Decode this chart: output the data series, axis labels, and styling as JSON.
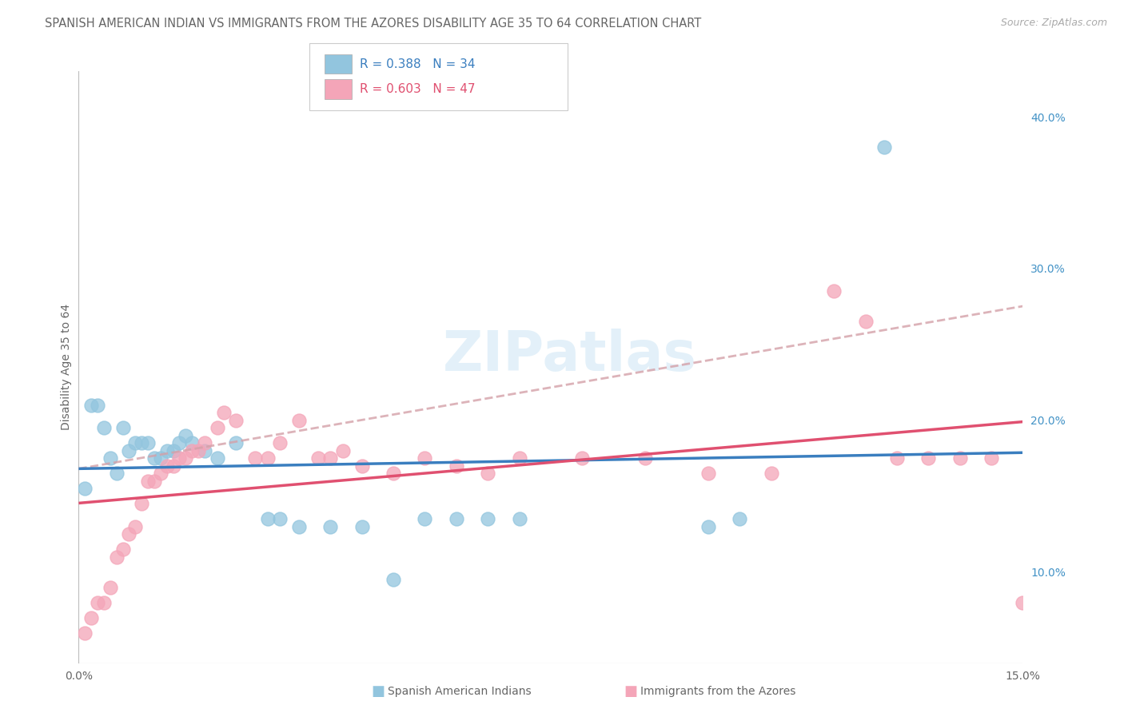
{
  "title": "SPANISH AMERICAN INDIAN VS IMMIGRANTS FROM THE AZORES DISABILITY AGE 35 TO 64 CORRELATION CHART",
  "source": "Source: ZipAtlas.com",
  "ylabel": "Disability Age 35 to 64",
  "ylabel_right_ticks": [
    "10.0%",
    "20.0%",
    "30.0%",
    "40.0%"
  ],
  "ylabel_right_vals": [
    0.1,
    0.2,
    0.3,
    0.4
  ],
  "legend1_label": "Spanish American Indians",
  "legend2_label": "Immigrants from the Azores",
  "R1": "0.388",
  "N1": "34",
  "R2": "0.603",
  "N2": "47",
  "color_blue": "#92c5de",
  "color_pink": "#f4a5b8",
  "color_blue_line": "#3a7ebf",
  "color_pink_line": "#e05070",
  "color_dashed": "#d4a0a8",
  "background": "#ffffff",
  "grid_color": "#d8d8d8",
  "xlim": [
    0.0,
    0.15
  ],
  "ylim": [
    0.04,
    0.43
  ],
  "blue_points_x": [
    0.001,
    0.002,
    0.003,
    0.004,
    0.005,
    0.006,
    0.007,
    0.008,
    0.009,
    0.01,
    0.011,
    0.012,
    0.013,
    0.014,
    0.015,
    0.016,
    0.017,
    0.018,
    0.02,
    0.022,
    0.025,
    0.03,
    0.032,
    0.035,
    0.04,
    0.045,
    0.05,
    0.055,
    0.06,
    0.065,
    0.07,
    0.1,
    0.105,
    0.128
  ],
  "blue_points_y": [
    0.155,
    0.21,
    0.21,
    0.195,
    0.175,
    0.165,
    0.195,
    0.18,
    0.185,
    0.185,
    0.185,
    0.175,
    0.175,
    0.18,
    0.18,
    0.185,
    0.19,
    0.185,
    0.18,
    0.175,
    0.185,
    0.135,
    0.135,
    0.13,
    0.13,
    0.13,
    0.095,
    0.135,
    0.135,
    0.135,
    0.135,
    0.13,
    0.135,
    0.38
  ],
  "pink_points_x": [
    0.001,
    0.002,
    0.003,
    0.004,
    0.005,
    0.006,
    0.007,
    0.008,
    0.009,
    0.01,
    0.011,
    0.012,
    0.013,
    0.014,
    0.015,
    0.016,
    0.017,
    0.018,
    0.019,
    0.02,
    0.022,
    0.023,
    0.025,
    0.028,
    0.03,
    0.032,
    0.035,
    0.038,
    0.04,
    0.042,
    0.045,
    0.05,
    0.055,
    0.06,
    0.065,
    0.07,
    0.08,
    0.09,
    0.1,
    0.11,
    0.12,
    0.125,
    0.13,
    0.135,
    0.14,
    0.145,
    0.15
  ],
  "pink_points_y": [
    0.06,
    0.07,
    0.08,
    0.08,
    0.09,
    0.11,
    0.115,
    0.125,
    0.13,
    0.145,
    0.16,
    0.16,
    0.165,
    0.17,
    0.17,
    0.175,
    0.175,
    0.18,
    0.18,
    0.185,
    0.195,
    0.205,
    0.2,
    0.175,
    0.175,
    0.185,
    0.2,
    0.175,
    0.175,
    0.18,
    0.17,
    0.165,
    0.175,
    0.17,
    0.165,
    0.175,
    0.175,
    0.175,
    0.165,
    0.165,
    0.285,
    0.265,
    0.175,
    0.175,
    0.175,
    0.175,
    0.08
  ],
  "title_fontsize": 10.5,
  "source_fontsize": 9,
  "axis_label_fontsize": 10,
  "tick_fontsize": 10
}
